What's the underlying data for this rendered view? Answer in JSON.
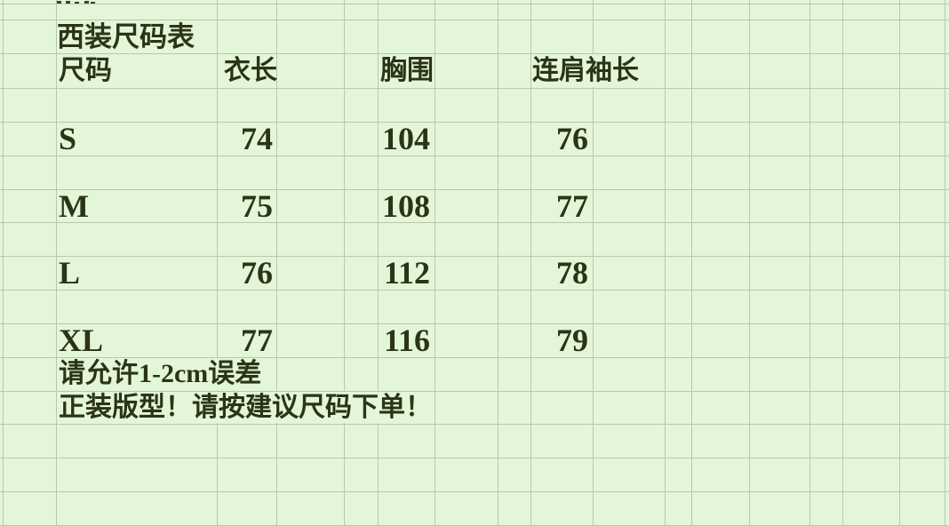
{
  "sheet": {
    "title": "西装尺码表",
    "columns": [
      "尺码",
      "衣长",
      "胸围",
      "连肩袖长"
    ],
    "rows": [
      {
        "size": "S",
        "garment_length": "74",
        "chest": "104",
        "shoulder_sleeve": "76"
      },
      {
        "size": "M",
        "garment_length": "75",
        "chest": "108",
        "shoulder_sleeve": "77"
      },
      {
        "size": "L",
        "garment_length": "76",
        "chest": "112",
        "shoulder_sleeve": "78"
      },
      {
        "size": "XL",
        "garment_length": "77",
        "chest": "116",
        "shoulder_sleeve": "79"
      }
    ],
    "notes": [
      "请允许1-2cm误差",
      "正装版型！请按建议尺码下单！"
    ]
  },
  "colors": {
    "background": "#e4f6da",
    "grid_line": "#b9c7ac",
    "text": "#2b3516"
  }
}
